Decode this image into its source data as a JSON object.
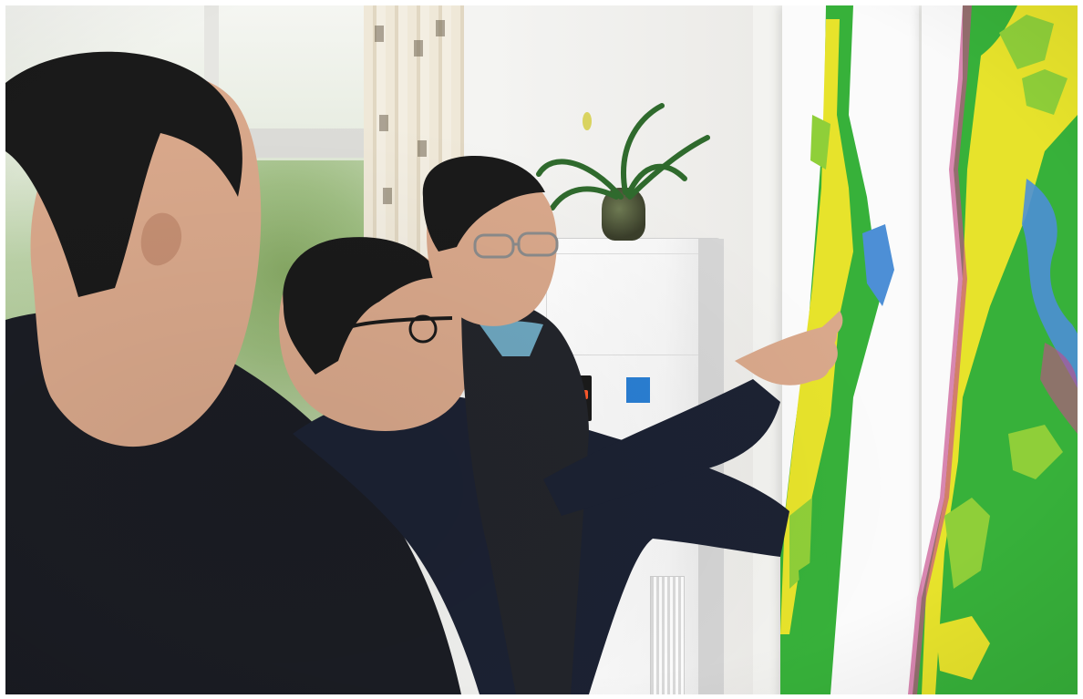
{
  "scene": {
    "colors": {
      "wall": "#f1f1ee",
      "window_foliage": "#97b978",
      "map_green": "#37b13a",
      "map_yellow": "#e7e32b",
      "map_lime": "#8fcf39",
      "map_magenta": "#c64a8b",
      "map_blue": "#4d8fd6",
      "jacket_dark": "#1b1d24",
      "jacket_navy": "#1c2233",
      "skin": "#d9a88b",
      "hair": "#1a1a1a"
    }
  }
}
